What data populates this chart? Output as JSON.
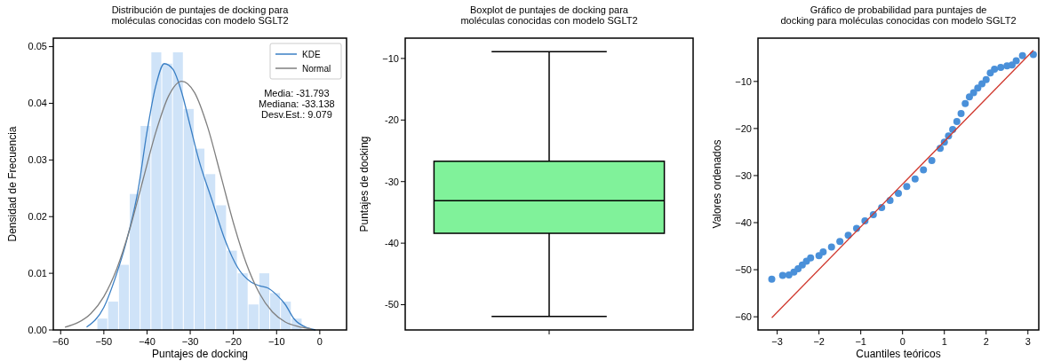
{
  "chart_data": [
    {
      "type": "histogram",
      "title": "Distribución de puntajes de docking para\nmoléculas conocidas con modelo SGLT2",
      "xlabel": "Puntajes de docking",
      "ylabel": "Densidad de Frecuencia",
      "bins": [
        -51.6,
        -49.1,
        -46.6,
        -44.1,
        -41.6,
        -39.1,
        -36.6,
        -34.1,
        -31.6,
        -29.1,
        -26.6,
        -24.1,
        -21.6,
        -19.1,
        -16.6,
        -14.1,
        -11.6,
        -9.1,
        -6.6,
        -4.1
      ],
      "values": [
        0.002,
        0.005,
        0.0115,
        0.024,
        0.036,
        0.049,
        0.047,
        0.049,
        0.039,
        0.032,
        0.0275,
        0.022,
        0.014,
        0.01,
        0.0045,
        0.01,
        0.0065,
        0.005,
        0.002
      ],
      "color": "#cfe3f8",
      "series": [
        {
          "type": "line",
          "name": "KDE",
          "color": "#3a7fc4",
          "x": [
            -54,
            -50,
            -47,
            -45,
            -42,
            -40,
            -38,
            -36,
            -34,
            -32,
            -30,
            -28,
            -25,
            -22,
            -19,
            -16,
            -14,
            -12,
            -10,
            -8,
            -6,
            -3,
            -1
          ],
          "values": [
            0.0005,
            0.004,
            0.01,
            0.015,
            0.025,
            0.035,
            0.043,
            0.047,
            0.046,
            0.042,
            0.036,
            0.03,
            0.023,
            0.016,
            0.011,
            0.0085,
            0.0078,
            0.0074,
            0.0062,
            0.0045,
            0.002,
            0.0004,
            0.0
          ]
        },
        {
          "type": "line",
          "name": "Normal",
          "color": "#7f7f7f",
          "x": [
            -59,
            -56,
            -53,
            -50,
            -47,
            -44,
            -41,
            -38,
            -35,
            -32,
            -29,
            -26,
            -23,
            -20,
            -17,
            -14,
            -11,
            -8,
            -5,
            -2
          ],
          "values": [
            0.0005,
            0.0013,
            0.0029,
            0.0059,
            0.0108,
            0.0178,
            0.0263,
            0.0348,
            0.0413,
            0.0439,
            0.0419,
            0.0359,
            0.0275,
            0.0189,
            0.0117,
            0.0065,
            0.0032,
            0.0014,
            0.0006,
            0.0002
          ]
        }
      ],
      "xlim": [
        -61.7,
        6.2
      ],
      "ylim": [
        0,
        0.0515
      ],
      "xticks": [
        {
          "value": -60,
          "label": "−60"
        },
        {
          "value": -50,
          "label": "−50"
        },
        {
          "value": -40,
          "label": "−40"
        },
        {
          "value": -30,
          "label": "−30"
        },
        {
          "value": -20,
          "label": "−20"
        },
        {
          "value": -10,
          "label": "−10"
        },
        0
      ],
      "yticks": [
        {
          "value": 0,
          "label": "0.00"
        },
        {
          "value": 0.01,
          "label": "0.01"
        },
        {
          "value": 0.02,
          "label": "0.02"
        },
        {
          "value": 0.03,
          "label": "0.03"
        },
        {
          "value": 0.04,
          "label": "0.04"
        },
        {
          "value": 0.05,
          "label": "0.05"
        }
      ],
      "legend": "top right",
      "annotations": [
        "Media: -31.793",
        "Mediana: -33.138",
        "Desv.Est.: 9.079"
      ]
    },
    {
      "type": "box",
      "title": "Boxplot de puntajes de docking para\nmoléculas conocidas con modelo SGLT2",
      "ylabel": "Puntajes de docking",
      "categories": [
        null
      ],
      "color": "#80f29a",
      "boxes": [
        {
          "low": -51.9,
          "q1": -38.4,
          "median": -33.1,
          "q3": -26.7,
          "high": -8.9
        }
      ],
      "ylim": [
        -54.1,
        -6.7
      ],
      "yticks": [
        {
          "value": -50,
          "label": "-50"
        },
        {
          "value": -40,
          "label": "-40"
        },
        {
          "value": -30,
          "label": "-30"
        },
        {
          "value": -20,
          "label": "-20"
        },
        {
          "value": -10,
          "label": "−10"
        }
      ]
    },
    {
      "type": "scatter",
      "title": "Gráfico de probabilidad para puntajes de\ndocking para moléculas conocidas con modelo SGLT2",
      "xlabel": "Cuantiles teóricos",
      "ylabel": "Valores ordenados",
      "series": [
        {
          "marker": "circle",
          "color": "#4a90d9",
          "x": [
            -3.13,
            -2.87,
            -2.72,
            -2.6,
            -2.5,
            -2.4,
            -2.3,
            -2.2,
            -2.0,
            -1.9,
            -1.7,
            -1.5,
            -1.3,
            -1.1,
            -0.9,
            -0.7,
            -0.5,
            -0.3,
            -0.1,
            0.1,
            0.3,
            0.5,
            0.7,
            0.9,
            1.0,
            1.1,
            1.2,
            1.3,
            1.4,
            1.5,
            1.6,
            1.7,
            1.8,
            1.9,
            2.0,
            2.1,
            2.2,
            2.35,
            2.5,
            2.62,
            2.72,
            2.87,
            3.13
          ],
          "values": [
            -52.0,
            -51.2,
            -51.1,
            -50.5,
            -49.8,
            -49.0,
            -48.2,
            -47.5,
            -47.0,
            -46.2,
            -45.2,
            -44.0,
            -42.7,
            -41.2,
            -39.6,
            -38.3,
            -36.8,
            -35.3,
            -33.8,
            -32.3,
            -30.7,
            -28.8,
            -26.8,
            -24.2,
            -22.9,
            -21.6,
            -20.2,
            -18.5,
            -16.8,
            -14.7,
            -13.3,
            -12.4,
            -11.4,
            -10.5,
            -9.6,
            -8.2,
            -7.4,
            -7.0,
            -6.7,
            -6.5,
            -5.6,
            -4.5,
            -4.3
          ]
        },
        {
          "type": "line",
          "color": "#d0392f",
          "x": [
            -3.13,
            3.13
          ],
          "values": [
            -60.2,
            -3.4
          ]
        }
      ],
      "xlim": [
        -3.46,
        3.26
      ],
      "ylim": [
        -62.8,
        -0.8
      ],
      "xticks": [
        {
          "value": -3,
          "label": "−3"
        },
        {
          "value": -2,
          "label": "−2"
        },
        {
          "value": -1,
          "label": "−1"
        },
        0,
        1,
        2,
        3
      ],
      "yticks": [
        {
          "value": -60,
          "label": "−60"
        },
        {
          "value": -50,
          "label": "−50"
        },
        {
          "value": -40,
          "label": "−40"
        },
        {
          "value": -30,
          "label": "−30"
        },
        {
          "value": -20,
          "label": "−20"
        },
        {
          "value": -10,
          "label": "−10"
        }
      ]
    }
  ]
}
